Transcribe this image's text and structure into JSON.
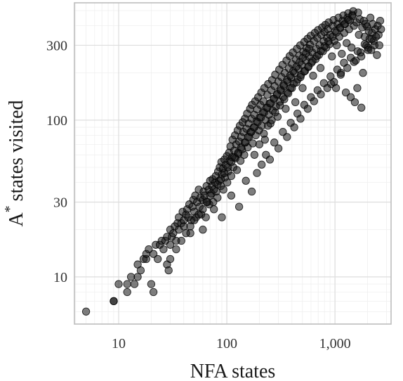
{
  "chart_data": {
    "type": "scatter",
    "title": "",
    "xlabel": "NFA states",
    "ylabel": "A",
    "ylabel_superscript": "*",
    "ylabel_rest": "states visited",
    "x_scale": "log10",
    "y_scale": "log10",
    "xlim": [
      3.9,
      3300
    ],
    "ylim": [
      5,
      560
    ],
    "x_ticks": [
      10,
      100,
      1000
    ],
    "x_tick_labels": [
      "10",
      "100",
      "1,000"
    ],
    "y_ticks": [
      10,
      30,
      100,
      300
    ],
    "y_tick_labels": [
      "10",
      "30",
      "100",
      "300"
    ],
    "grid": true,
    "legend": "none",
    "point_color": "#141414",
    "point_opacity": 0.55,
    "points": [
      [
        5,
        6
      ],
      [
        9,
        7
      ],
      [
        9,
        7
      ],
      [
        10,
        9
      ],
      [
        12,
        8
      ],
      [
        12,
        9
      ],
      [
        13,
        10
      ],
      [
        14,
        9
      ],
      [
        15,
        10
      ],
      [
        15,
        12
      ],
      [
        16,
        11
      ],
      [
        17,
        13
      ],
      [
        18,
        13
      ],
      [
        18,
        14
      ],
      [
        19,
        15
      ],
      [
        20,
        9
      ],
      [
        21,
        8
      ],
      [
        21,
        14
      ],
      [
        22,
        16
      ],
      [
        23,
        13
      ],
      [
        24,
        16
      ],
      [
        25,
        17
      ],
      [
        26,
        15
      ],
      [
        27,
        17
      ],
      [
        28,
        12
      ],
      [
        28,
        18
      ],
      [
        29,
        11
      ],
      [
        30,
        16
      ],
      [
        30,
        20
      ],
      [
        31,
        18
      ],
      [
        32,
        19
      ],
      [
        33,
        21
      ],
      [
        34,
        17
      ],
      [
        35,
        22
      ],
      [
        36,
        20
      ],
      [
        36,
        24
      ],
      [
        38,
        22
      ],
      [
        39,
        26
      ],
      [
        40,
        23
      ],
      [
        40,
        21
      ],
      [
        42,
        25
      ],
      [
        43,
        27
      ],
      [
        44,
        24
      ],
      [
        45,
        29
      ],
      [
        46,
        19
      ],
      [
        47,
        23
      ],
      [
        48,
        28
      ],
      [
        49,
        31
      ],
      [
        50,
        26
      ],
      [
        51,
        33
      ],
      [
        52,
        24
      ],
      [
        53,
        30
      ],
      [
        55,
        36
      ],
      [
        56,
        28
      ],
      [
        57,
        32
      ],
      [
        58,
        25
      ],
      [
        60,
        31
      ],
      [
        61,
        35
      ],
      [
        62,
        33
      ],
      [
        64,
        24
      ],
      [
        65,
        38
      ],
      [
        66,
        30
      ],
      [
        68,
        36
      ],
      [
        69,
        29
      ],
      [
        70,
        41
      ],
      [
        72,
        34
      ],
      [
        73,
        38
      ],
      [
        74,
        42
      ],
      [
        76,
        27
      ],
      [
        78,
        40
      ],
      [
        79,
        44
      ],
      [
        80,
        35
      ],
      [
        82,
        32
      ],
      [
        83,
        47
      ],
      [
        85,
        41
      ],
      [
        86,
        50
      ],
      [
        88,
        38
      ],
      [
        89,
        54
      ],
      [
        90,
        45
      ],
      [
        92,
        49
      ],
      [
        93,
        36
      ],
      [
        95,
        56
      ],
      [
        96,
        43
      ],
      [
        98,
        52
      ],
      [
        100,
        59
      ],
      [
        101,
        40
      ],
      [
        103,
        47
      ],
      [
        105,
        62
      ],
      [
        106,
        55
      ],
      [
        108,
        68
      ],
      [
        110,
        44
      ],
      [
        112,
        58
      ],
      [
        113,
        75
      ],
      [
        115,
        50
      ],
      [
        117,
        64
      ],
      [
        119,
        80
      ],
      [
        120,
        57
      ],
      [
        122,
        70
      ],
      [
        124,
        48
      ],
      [
        126,
        86
      ],
      [
        128,
        61
      ],
      [
        130,
        73
      ],
      [
        132,
        92
      ],
      [
        134,
        55
      ],
      [
        136,
        78
      ],
      [
        138,
        65
      ],
      [
        140,
        97
      ],
      [
        142,
        84
      ],
      [
        145,
        60
      ],
      [
        147,
        102
      ],
      [
        149,
        72
      ],
      [
        152,
        88
      ],
      [
        154,
        110
      ],
      [
        156,
        67
      ],
      [
        159,
        95
      ],
      [
        161,
        78
      ],
      [
        164,
        118
      ],
      [
        166,
        84
      ],
      [
        169,
        102
      ],
      [
        171,
        125
      ],
      [
        174,
        71
      ],
      [
        177,
        90
      ],
      [
        180,
        108
      ],
      [
        183,
        132
      ],
      [
        185,
        80
      ],
      [
        188,
        98
      ],
      [
        191,
        117
      ],
      [
        195,
        140
      ],
      [
        198,
        86
      ],
      [
        201,
        104
      ],
      [
        204,
        125
      ],
      [
        208,
        150
      ],
      [
        211,
        92
      ],
      [
        215,
        112
      ],
      [
        218,
        132
      ],
      [
        222,
        160
      ],
      [
        225,
        75
      ],
      [
        229,
        100
      ],
      [
        233,
        120
      ],
      [
        237,
        145
      ],
      [
        241,
        170
      ],
      [
        245,
        108
      ],
      [
        249,
        128
      ],
      [
        253,
        95
      ],
      [
        258,
        155
      ],
      [
        262,
        180
      ],
      [
        266,
        115
      ],
      [
        271,
        137
      ],
      [
        276,
        165
      ],
      [
        280,
        195
      ],
      [
        285,
        122
      ],
      [
        290,
        145
      ],
      [
        295,
        105
      ],
      [
        300,
        176
      ],
      [
        305,
        210
      ],
      [
        310,
        131
      ],
      [
        316,
        154
      ],
      [
        321,
        188
      ],
      [
        327,
        225
      ],
      [
        332,
        140
      ],
      [
        338,
        165
      ],
      [
        344,
        200
      ],
      [
        350,
        118
      ],
      [
        356,
        240
      ],
      [
        362,
        150
      ],
      [
        368,
        176
      ],
      [
        375,
        214
      ],
      [
        381,
        256
      ],
      [
        388,
        160
      ],
      [
        394,
        187
      ],
      [
        401,
        228
      ],
      [
        408,
        270
      ],
      [
        415,
        171
      ],
      [
        423,
        200
      ],
      [
        430,
        130
      ],
      [
        437,
        243
      ],
      [
        445,
        285
      ],
      [
        453,
        182
      ],
      [
        461,
        212
      ],
      [
        469,
        258
      ],
      [
        477,
        300
      ],
      [
        485,
        194
      ],
      [
        494,
        225
      ],
      [
        502,
        160
      ],
      [
        511,
        272
      ],
      [
        520,
        315
      ],
      [
        529,
        206
      ],
      [
        538,
        240
      ],
      [
        547,
        288
      ],
      [
        557,
        330
      ],
      [
        566,
        218
      ],
      [
        576,
        254
      ],
      [
        586,
        304
      ],
      [
        597,
        345
      ],
      [
        607,
        232
      ],
      [
        618,
        270
      ],
      [
        628,
        192
      ],
      [
        639,
        320
      ],
      [
        651,
        360
      ],
      [
        662,
        245
      ],
      [
        674,
        285
      ],
      [
        686,
        335
      ],
      [
        697,
        375
      ],
      [
        710,
        260
      ],
      [
        722,
        300
      ],
      [
        735,
        215
      ],
      [
        748,
        350
      ],
      [
        761,
        390
      ],
      [
        774,
        275
      ],
      [
        788,
        318
      ],
      [
        801,
        365
      ],
      [
        815,
        405
      ],
      [
        830,
        290
      ],
      [
        844,
        335
      ],
      [
        859,
        380
      ],
      [
        874,
        420
      ],
      [
        890,
        305
      ],
      [
        905,
        350
      ],
      [
        921,
        170
      ],
      [
        937,
        255
      ],
      [
        954,
        400
      ],
      [
        970,
        435
      ],
      [
        987,
        320
      ],
      [
        1005,
        370
      ],
      [
        1022,
        160
      ],
      [
        1040,
        300
      ],
      [
        1058,
        410
      ],
      [
        1077,
        450
      ],
      [
        1096,
        340
      ],
      [
        1115,
        390
      ],
      [
        1135,
        200
      ],
      [
        1155,
        265
      ],
      [
        1175,
        430
      ],
      [
        1196,
        465
      ],
      [
        1217,
        360
      ],
      [
        1238,
        410
      ],
      [
        1260,
        150
      ],
      [
        1282,
        310
      ],
      [
        1305,
        450
      ],
      [
        1327,
        480
      ],
      [
        1351,
        380
      ],
      [
        1374,
        430
      ],
      [
        1398,
        140
      ],
      [
        1423,
        290
      ],
      [
        1448,
        470
      ],
      [
        1474,
        495
      ],
      [
        1500,
        400
      ],
      [
        1526,
        130
      ],
      [
        1553,
        240
      ],
      [
        1580,
        420
      ],
      [
        1608,
        160
      ],
      [
        1636,
        485
      ],
      [
        1665,
        350
      ],
      [
        1694,
        440
      ],
      [
        1724,
        270
      ],
      [
        1754,
        120
      ],
      [
        1785,
        390
      ],
      [
        1816,
        200
      ],
      [
        1848,
        430
      ],
      [
        1881,
        340
      ],
      [
        1914,
        410
      ],
      [
        1947,
        300
      ],
      [
        1982,
        395
      ],
      [
        2016,
        290
      ],
      [
        2052,
        370
      ],
      [
        2088,
        330
      ],
      [
        2125,
        450
      ],
      [
        2162,
        280
      ],
      [
        2200,
        360
      ],
      [
        2239,
        410
      ],
      [
        2278,
        320
      ],
      [
        2318,
        300
      ],
      [
        2359,
        380
      ],
      [
        2400,
        340
      ],
      [
        2442,
        260
      ],
      [
        2485,
        400
      ],
      [
        2528,
        350
      ],
      [
        2572,
        300
      ],
      [
        2617,
        430
      ],
      [
        2663,
        380
      ]
    ],
    "extra_points": [
      [
        60,
        20
      ],
      [
        75,
        30
      ],
      [
        90,
        24
      ],
      [
        110,
        33
      ],
      [
        130,
        28
      ],
      [
        150,
        41
      ],
      [
        170,
        35
      ],
      [
        190,
        46
      ],
      [
        210,
        52
      ],
      [
        230,
        60
      ],
      [
        250,
        56
      ],
      [
        275,
        72
      ],
      [
        300,
        66
      ],
      [
        330,
        84
      ],
      [
        360,
        78
      ],
      [
        390,
        96
      ],
      [
        420,
        90
      ],
      [
        450,
        110
      ],
      [
        480,
        102
      ],
      [
        520,
        125
      ],
      [
        560,
        118
      ],
      [
        600,
        140
      ],
      [
        640,
        132
      ],
      [
        690,
        155
      ],
      [
        740,
        146
      ],
      [
        790,
        172
      ],
      [
        850,
        160
      ],
      [
        910,
        190
      ],
      [
        980,
        175
      ],
      [
        1050,
        210
      ],
      [
        1130,
        195
      ],
      [
        1210,
        232
      ],
      [
        1300,
        215
      ],
      [
        1400,
        250
      ],
      [
        1500,
        235
      ],
      [
        1620,
        275
      ],
      [
        1750,
        255
      ],
      [
        1880,
        305
      ],
      [
        2020,
        280
      ],
      [
        2180,
        330
      ],
      [
        180,
        60
      ],
      [
        200,
        70
      ],
      [
        220,
        82
      ],
      [
        240,
        92
      ],
      [
        260,
        100
      ],
      [
        280,
        112
      ],
      [
        310,
        124
      ],
      [
        340,
        136
      ],
      [
        370,
        148
      ],
      [
        400,
        160
      ],
      [
        440,
        174
      ],
      [
        480,
        188
      ],
      [
        520,
        204
      ],
      [
        570,
        220
      ],
      [
        620,
        238
      ],
      [
        680,
        256
      ],
      [
        740,
        276
      ],
      [
        800,
        296
      ],
      [
        870,
        318
      ],
      [
        950,
        340
      ],
      [
        1030,
        362
      ],
      [
        1120,
        386
      ],
      [
        1220,
        410
      ],
      [
        1330,
        436
      ],
      [
        1450,
        462
      ],
      [
        30,
        13
      ],
      [
        34,
        15
      ],
      [
        38,
        17
      ],
      [
        42,
        19
      ],
      [
        46,
        21
      ],
      [
        50,
        23
      ],
      [
        55,
        25
      ],
      [
        60,
        27
      ],
      [
        65,
        30
      ],
      [
        70,
        33
      ],
      [
        76,
        36
      ],
      [
        82,
        39
      ],
      [
        88,
        42
      ],
      [
        95,
        46
      ],
      [
        102,
        50
      ],
      [
        110,
        54
      ],
      [
        118,
        58
      ],
      [
        127,
        62
      ],
      [
        136,
        67
      ],
      [
        146,
        72
      ],
      [
        157,
        78
      ],
      [
        168,
        84
      ],
      [
        180,
        90
      ],
      [
        193,
        97
      ],
      [
        207,
        104
      ],
      [
        222,
        112
      ],
      [
        238,
        120
      ],
      [
        255,
        128
      ],
      [
        273,
        137
      ],
      [
        292,
        147
      ],
      [
        313,
        157
      ],
      [
        335,
        168
      ],
      [
        359,
        180
      ],
      [
        384,
        192
      ],
      [
        411,
        205
      ],
      [
        440,
        219
      ],
      [
        471,
        234
      ],
      [
        504,
        250
      ],
      [
        540,
        267
      ],
      [
        578,
        285
      ]
    ]
  }
}
